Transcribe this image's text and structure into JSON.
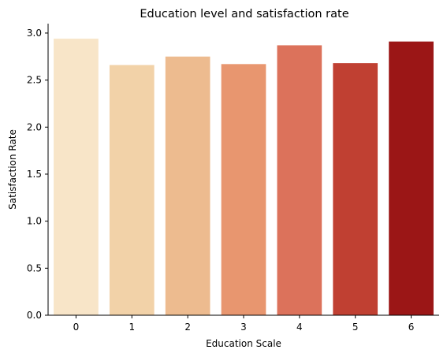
{
  "chart_data": {
    "type": "bar",
    "title": "Education level and satisfaction rate",
    "xlabel": "Education Scale",
    "ylabel": "Satisfaction Rate",
    "categories": [
      "0",
      "1",
      "2",
      "3",
      "4",
      "5",
      "6"
    ],
    "values": [
      2.94,
      2.66,
      2.75,
      2.67,
      2.87,
      2.68,
      2.91
    ],
    "colors": [
      "#f8e5c8",
      "#f2d2a8",
      "#edbb8f",
      "#e8966f",
      "#dc725b",
      "#c04032",
      "#9b1616"
    ],
    "ylim": [
      0,
      3.1
    ],
    "yticks": [
      "0.0",
      "0.5",
      "1.0",
      "1.5",
      "2.0",
      "2.5",
      "3.0"
    ],
    "grid": false,
    "legend": "none"
  }
}
